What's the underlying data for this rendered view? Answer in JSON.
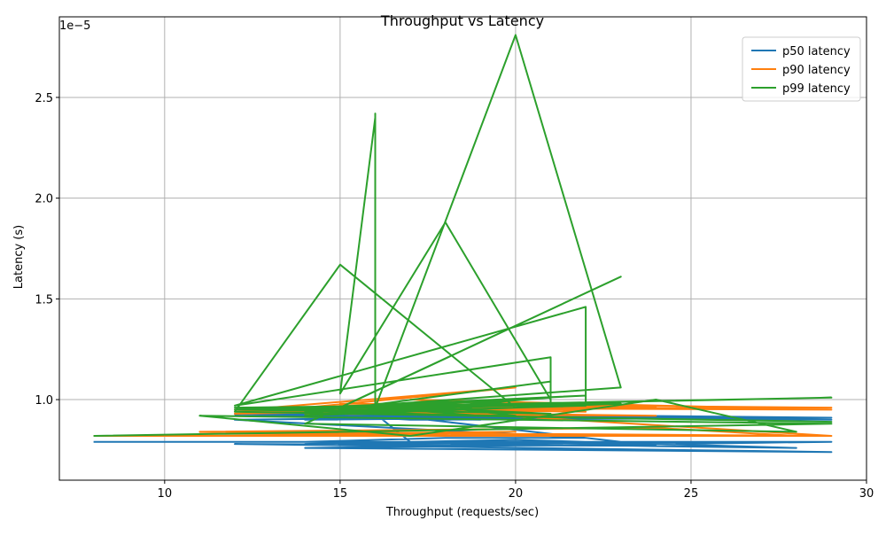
{
  "chart_data": {
    "type": "line",
    "title": "Throughput vs Latency",
    "xlabel": "Throughput (requests/sec)",
    "ylabel": "Latency (s)",
    "y_offset_text": "1e−5",
    "xlim": [
      7,
      30
    ],
    "ylim": [
      0.6,
      2.9
    ],
    "x_ticks": [
      10,
      15,
      20,
      25,
      30
    ],
    "y_ticks": [
      1.0,
      1.5,
      2.0,
      2.5
    ],
    "x_tick_labels": [
      "10",
      "15",
      "20",
      "25",
      "30"
    ],
    "y_tick_labels": [
      "1.0",
      "1.5",
      "2.0",
      "2.5"
    ],
    "y_scale_note": "values in units of 1e-5 s",
    "grid": true,
    "legend_position": "top-right",
    "series": [
      {
        "name": "p50 latency",
        "color": "#1f77b4",
        "x": [
          8,
          29,
          14,
          29,
          12,
          24,
          16,
          17,
          29,
          14,
          20,
          28,
          14,
          18,
          22,
          12,
          23,
          29,
          15,
          21,
          14,
          18,
          20,
          12,
          28,
          14,
          19,
          12,
          22,
          29,
          17,
          20,
          14,
          20,
          24,
          12,
          21,
          16,
          17,
          29,
          12,
          22,
          14,
          20,
          12,
          23,
          20,
          13
        ],
        "y": [
          0.79,
          0.79,
          0.76,
          0.74,
          0.78,
          0.77,
          0.93,
          0.79,
          0.79,
          0.78,
          0.8,
          0.76,
          0.79,
          0.81,
          0.81,
          0.9,
          0.92,
          0.91,
          0.92,
          0.91,
          0.9,
          0.92,
          0.91,
          0.93,
          0.91,
          0.92,
          0.9,
          0.92,
          0.91,
          0.9,
          0.92,
          0.91,
          0.93,
          0.92,
          0.91,
          0.93,
          0.92,
          0.91,
          0.9,
          0.91,
          0.93,
          0.92,
          0.9,
          0.91,
          0.92,
          0.91,
          0.9,
          0.93
        ]
      },
      {
        "name": "p90 latency",
        "color": "#ff7f0e",
        "x": [
          8,
          29,
          11,
          24,
          28,
          11,
          29,
          15,
          20,
          13,
          29,
          15,
          23,
          12,
          21,
          17,
          29,
          14,
          20,
          13,
          22,
          16,
          24,
          12,
          29,
          15,
          21,
          14,
          23,
          12,
          18,
          20,
          16,
          13,
          19,
          22,
          12,
          21,
          15,
          24,
          14,
          20,
          18,
          12,
          22,
          17
        ],
        "y": [
          0.82,
          0.82,
          0.84,
          0.86,
          0.82,
          0.83,
          0.82,
          0.82,
          0.84,
          0.83,
          0.82,
          0.97,
          0.96,
          0.95,
          0.97,
          1.0,
          0.95,
          0.96,
          1.06,
          0.96,
          0.94,
          0.98,
          0.96,
          0.95,
          0.96,
          0.98,
          0.97,
          0.94,
          0.96,
          0.95,
          0.97,
          0.96,
          0.95,
          0.94,
          0.97,
          0.96,
          0.93,
          0.96,
          0.94,
          0.92,
          0.93,
          0.95,
          0.96,
          0.94,
          0.95,
          0.93
        ]
      },
      {
        "name": "p99 latency",
        "color": "#2ca02c",
        "x": [
          8,
          29,
          11,
          17,
          24,
          28,
          14,
          23,
          15,
          23,
          20,
          16,
          16,
          16,
          16,
          16,
          16,
          15,
          18,
          21,
          21,
          12,
          22,
          22,
          14,
          21,
          21,
          20,
          15,
          12,
          29,
          15,
          20,
          18,
          14,
          23,
          13,
          19,
          16,
          21,
          16,
          12,
          29,
          14,
          20,
          18,
          13,
          22,
          16,
          21,
          12,
          22,
          14,
          20,
          13
        ],
        "y": [
          0.82,
          0.88,
          0.92,
          0.82,
          1.0,
          0.84,
          0.88,
          1.61,
          0.96,
          1.06,
          2.81,
          0.96,
          2.42,
          0.96,
          2.41,
          0.96,
          2.4,
          1.03,
          1.88,
          1.0,
          1.21,
          0.97,
          1.46,
          0.97,
          0.93,
          1.09,
          0.98,
          0.96,
          1.67,
          0.94,
          0.89,
          0.93,
          0.92,
          0.96,
          0.92,
          0.98,
          0.95,
          0.92,
          0.96,
          1.01,
          0.94,
          0.95,
          1.01,
          0.96,
          1.0,
          0.94,
          0.95,
          1.02,
          0.97,
          0.93,
          0.96,
          0.98,
          0.94,
          0.97,
          0.95
        ]
      }
    ]
  }
}
